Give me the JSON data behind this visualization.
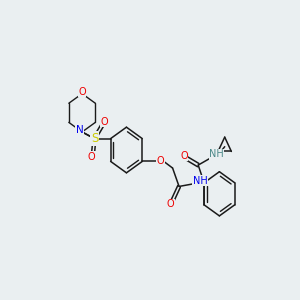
{
  "background_color": "#eaeff1",
  "atom_colors": {
    "C": "#1a1a1a",
    "N": "#0000ee",
    "O": "#ee0000",
    "S": "#cccc00",
    "H": "#4a8888"
  },
  "figsize": [
    3.0,
    3.0
  ],
  "dpi": 100
}
